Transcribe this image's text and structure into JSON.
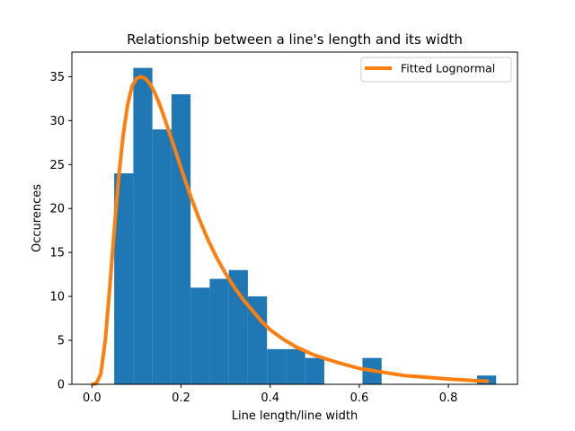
{
  "chart_data": {
    "type": "bar",
    "title": "Relationship between a line's length and its width",
    "xlabel": "Line length/line width",
    "ylabel": "Occurences",
    "xlim": [
      -0.045,
      0.955
    ],
    "ylim": [
      0,
      37.8
    ],
    "xticks": [
      0.0,
      0.2,
      0.4,
      0.6,
      0.8
    ],
    "xtick_labels": [
      "0.0",
      "0.2",
      "0.4",
      "0.6",
      "0.8"
    ],
    "yticks": [
      0,
      5,
      10,
      15,
      20,
      25,
      30,
      35
    ],
    "ytick_labels": [
      "0",
      "5",
      "10",
      "15",
      "20",
      "25",
      "30",
      "35"
    ],
    "grid": false,
    "legend_position": "top-right",
    "histogram": {
      "color": "#1f77b4",
      "bin_edges": [
        0.05,
        0.0929,
        0.1357,
        0.1786,
        0.2214,
        0.2643,
        0.3071,
        0.35,
        0.3929,
        0.4357,
        0.4786,
        0.5214,
        0.5643,
        0.6071,
        0.65,
        0.6929,
        0.7357,
        0.7786,
        0.8214,
        0.8643,
        0.9071
      ],
      "counts": [
        24,
        36,
        29,
        33,
        11,
        12,
        13,
        10,
        4,
        4,
        3,
        0,
        0,
        3,
        0,
        0,
        0,
        0,
        0,
        1
      ]
    },
    "series": [
      {
        "name": "Fitted Lognormal",
        "type": "line",
        "color": "#ff7f0e",
        "x": [
          0.0,
          0.01,
          0.02,
          0.03,
          0.04,
          0.05,
          0.06,
          0.07,
          0.08,
          0.09,
          0.1,
          0.11,
          0.12,
          0.13,
          0.14,
          0.15,
          0.16,
          0.18,
          0.2,
          0.22,
          0.24,
          0.26,
          0.28,
          0.3,
          0.32,
          0.34,
          0.36,
          0.38,
          0.4,
          0.43,
          0.46,
          0.5,
          0.55,
          0.6,
          0.65,
          0.7,
          0.75,
          0.8,
          0.85,
          0.89
        ],
        "y": [
          0.0,
          0.1,
          1.2,
          5.0,
          11.0,
          17.5,
          23.5,
          28.3,
          31.8,
          33.9,
          34.8,
          35.0,
          34.8,
          34.2,
          33.3,
          32.1,
          30.7,
          27.7,
          24.6,
          21.6,
          18.9,
          16.5,
          14.4,
          12.6,
          11.0,
          9.6,
          8.4,
          7.2,
          6.2,
          5.1,
          4.2,
          3.3,
          2.5,
          1.8,
          1.4,
          1.0,
          0.8,
          0.6,
          0.45,
          0.35
        ]
      }
    ]
  }
}
